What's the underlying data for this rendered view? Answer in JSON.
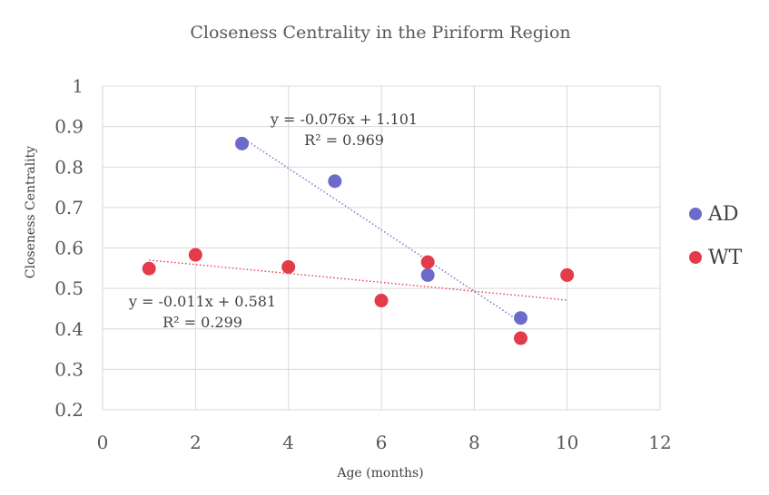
{
  "chart_data": {
    "type": "scatter",
    "title": "Closeness Centrality in the Piriform Region",
    "xlabel": "Age (months)",
    "ylabel": "Closeness Centrality",
    "xlim": [
      0,
      12
    ],
    "ylim": [
      0.2,
      1.0
    ],
    "xticks": [
      0,
      2,
      4,
      6,
      8,
      10,
      12
    ],
    "xtick_labels": [
      "0",
      "2",
      "4",
      "6",
      "8",
      "10",
      "12"
    ],
    "yticks": [
      0.2,
      0.3,
      0.4,
      0.5,
      0.6,
      0.7,
      0.8,
      0.9,
      1.0
    ],
    "ytick_labels": [
      "0.2",
      "0.3",
      "0.4",
      "0.5",
      "0.6",
      "0.7",
      "0.8",
      "0.9",
      "1"
    ],
    "grid": true,
    "legend_position": "right",
    "series": [
      {
        "name": "AD",
        "color": "#6b6bc9",
        "points": [
          {
            "x": 3,
            "y": 0.858
          },
          {
            "x": 5,
            "y": 0.765
          },
          {
            "x": 7,
            "y": 0.533
          },
          {
            "x": 9,
            "y": 0.427
          }
        ],
        "trendline": {
          "slope": -0.076,
          "intercept": 1.101,
          "x_range": [
            3,
            9
          ],
          "equation": "y = -0.076x + 1.101",
          "r2": "R² = 0.969"
        }
      },
      {
        "name": "WT",
        "color": "#e43b4b",
        "points": [
          {
            "x": 1,
            "y": 0.549
          },
          {
            "x": 2,
            "y": 0.583
          },
          {
            "x": 4,
            "y": 0.553
          },
          {
            "x": 6,
            "y": 0.47
          },
          {
            "x": 7,
            "y": 0.565
          },
          {
            "x": 9,
            "y": 0.377
          },
          {
            "x": 10,
            "y": 0.533
          }
        ],
        "trendline": {
          "slope": -0.011,
          "intercept": 0.581,
          "x_range": [
            1,
            10
          ],
          "equation": "y = -0.011x + 0.581",
          "r2": "R² = 0.299"
        }
      }
    ]
  }
}
